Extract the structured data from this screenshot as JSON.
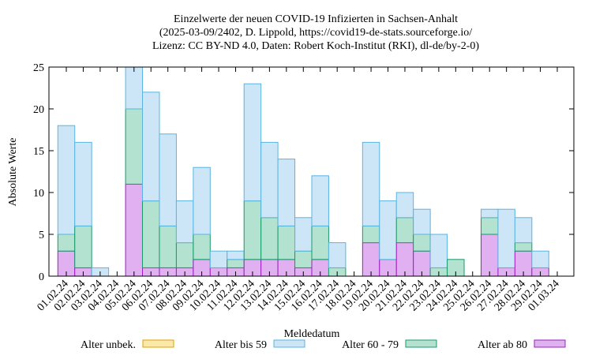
{
  "chart_data": {
    "type": "stacked_bar",
    "title": [
      "Einzelwerte der neuen COVID-19 Infizierten in Sachsen-Anhalt",
      "(2025-03-09/2402, D. Lippold, https://covid19-de-stats.sourceforge.io/",
      "Lizenz: CC BY-ND 4.0, Daten: Robert Koch-Institut (RKI), dl-de/by-2-0)"
    ],
    "x_label": "Meldedatum",
    "y_label": "Absolute Werte",
    "categories": [
      "01.02.24",
      "02.02.24",
      "03.02.24",
      "04.02.24",
      "05.02.24",
      "06.02.24",
      "07.02.24",
      "08.02.24",
      "09.02.24",
      "10.02.24",
      "11.02.24",
      "12.02.24",
      "13.02.24",
      "14.02.24",
      "15.02.24",
      "16.02.24",
      "17.02.24",
      "18.02.24",
      "19.02.24",
      "20.02.24",
      "21.02.24",
      "22.02.24",
      "23.02.24",
      "24.02.24",
      "25.02.24",
      "26.02.24",
      "27.02.24",
      "28.02.24",
      "29.02.24",
      "01.03.24"
    ],
    "series": [
      {
        "name": "Alter ab 80",
        "color": "#e0b0f0",
        "stroke": "#9a20c0",
        "values": [
          3,
          1,
          0,
          0,
          11,
          1,
          1,
          1,
          2,
          1,
          1,
          2,
          2,
          2,
          1,
          2,
          0,
          0,
          4,
          2,
          4,
          3,
          0,
          0,
          0,
          5,
          1,
          3,
          1,
          0
        ]
      },
      {
        "name": "Alter 60 - 79",
        "color": "#b3e3d0",
        "stroke": "#1a9a6a",
        "values": [
          2,
          5,
          0,
          0,
          9,
          8,
          5,
          3,
          3,
          0,
          1,
          7,
          5,
          4,
          2,
          4,
          1,
          0,
          2,
          0,
          3,
          2,
          1,
          2,
          0,
          2,
          0,
          1,
          0,
          0
        ]
      },
      {
        "name": "Alter bis 59",
        "color": "#cce6f8",
        "stroke": "#5ab4e0",
        "values": [
          13,
          10,
          1,
          0,
          5,
          13,
          11,
          5,
          8,
          2,
          1,
          14,
          9,
          8,
          4,
          6,
          3,
          0,
          10,
          7,
          3,
          3,
          4,
          0,
          0,
          1,
          7,
          3,
          2,
          0
        ]
      },
      {
        "name": "Alter unbek.",
        "color": "#fde8a8",
        "stroke": "#e0a000",
        "values": [
          0,
          0,
          0,
          0,
          0,
          0,
          0,
          0,
          0,
          0,
          0,
          0,
          0,
          0,
          0,
          0,
          0,
          0,
          0,
          0,
          0,
          0,
          0,
          0,
          0,
          0,
          0,
          0,
          0,
          0
        ]
      }
    ],
    "ylim": [
      0,
      25
    ],
    "yticks": [
      0,
      5,
      10,
      15,
      20,
      25
    ]
  }
}
